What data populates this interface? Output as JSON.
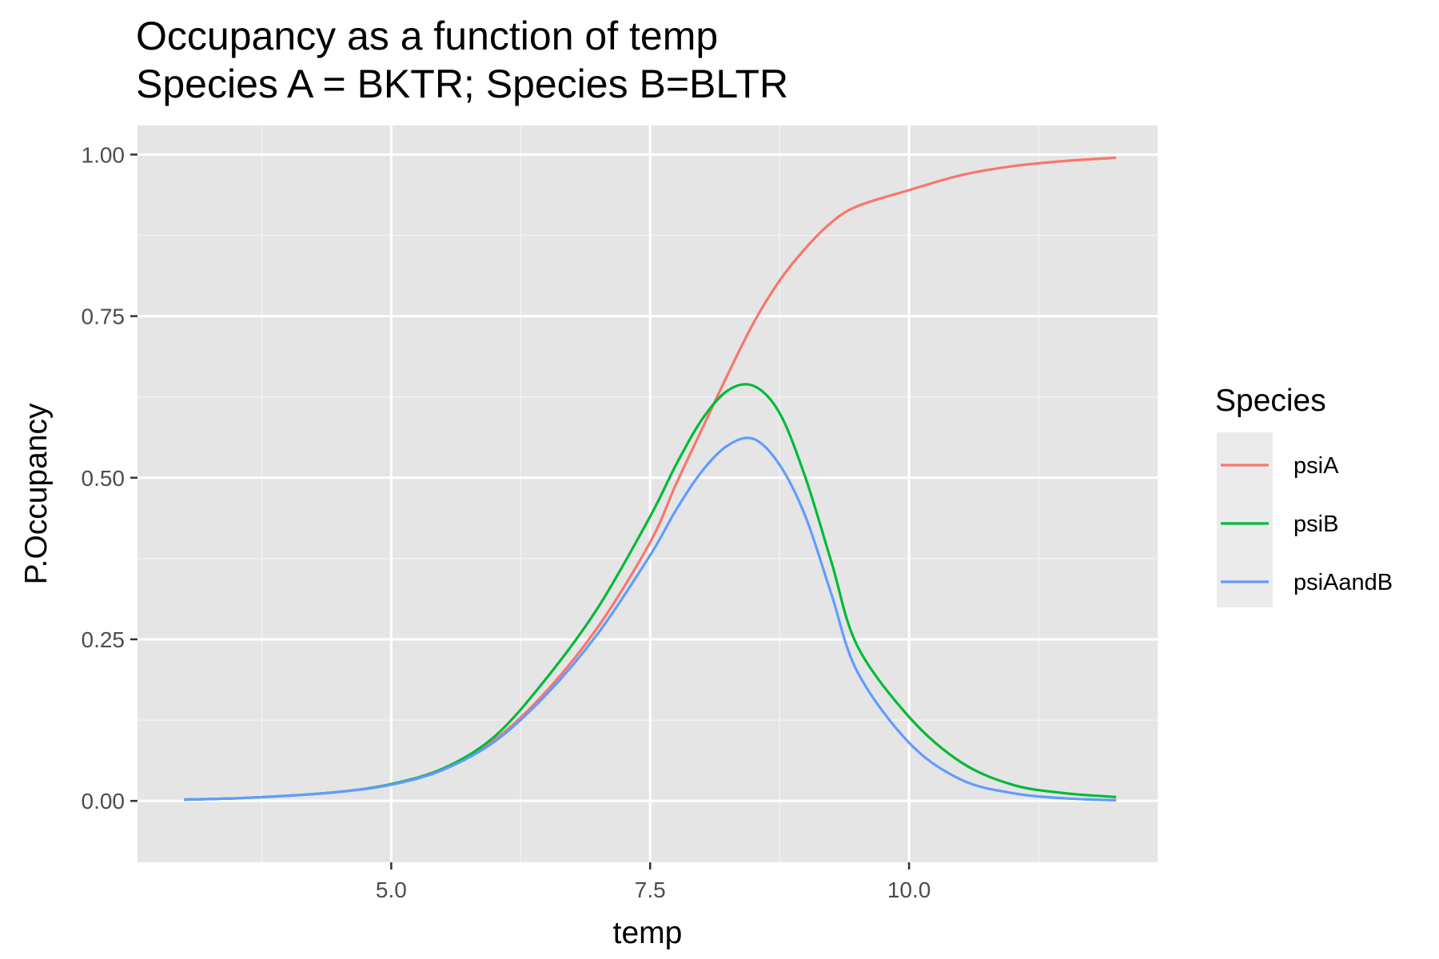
{
  "chart_data": {
    "type": "line",
    "title_line1": "Occupancy as a function of temp",
    "title_line2": "Species A = BKTR; Species B=BLTR",
    "xlabel": "temp",
    "ylabel": "P.Occupancy",
    "xlim": [
      2.55,
      12.4
    ],
    "ylim": [
      -0.095,
      1.045
    ],
    "x_ticks": [
      5.0,
      7.5,
      10.0
    ],
    "x_tick_labels": [
      "5.0",
      "7.5",
      "10.0"
    ],
    "y_ticks": [
      0.0,
      0.25,
      0.5,
      0.75,
      1.0
    ],
    "y_tick_labels": [
      "0.00",
      "0.25",
      "0.50",
      "0.75",
      "1.00"
    ],
    "grid": true,
    "legend_position": "right",
    "legend_title": "Species",
    "x": [
      3.0,
      3.5,
      4.0,
      4.5,
      5.0,
      5.5,
      6.0,
      6.5,
      7.0,
      7.5,
      7.75,
      8.0,
      8.25,
      8.5,
      8.75,
      9.0,
      9.25,
      9.5,
      10.0,
      10.5,
      11.0,
      11.5,
      12.0
    ],
    "series": [
      {
        "name": "psiA",
        "color": "#F8766D",
        "values": [
          0.002,
          0.004,
          0.008,
          0.014,
          0.026,
          0.05,
          0.095,
          0.17,
          0.27,
          0.4,
          0.49,
          0.575,
          0.66,
          0.74,
          0.805,
          0.855,
          0.895,
          0.92,
          0.945,
          0.968,
          0.982,
          0.99,
          0.995
        ]
      },
      {
        "name": "psiB",
        "color": "#00BA38",
        "values": [
          0.002,
          0.004,
          0.008,
          0.014,
          0.026,
          0.05,
          0.1,
          0.19,
          0.3,
          0.44,
          0.52,
          0.59,
          0.635,
          0.642,
          0.6,
          0.5,
          0.37,
          0.24,
          0.13,
          0.06,
          0.025,
          0.012,
          0.006
        ]
      },
      {
        "name": "psiAandB",
        "color": "#619CFF",
        "values": [
          0.002,
          0.004,
          0.008,
          0.014,
          0.025,
          0.048,
          0.092,
          0.165,
          0.26,
          0.38,
          0.45,
          0.51,
          0.55,
          0.56,
          0.52,
          0.44,
          0.32,
          0.2,
          0.09,
          0.033,
          0.012,
          0.004,
          0.001
        ]
      }
    ]
  }
}
